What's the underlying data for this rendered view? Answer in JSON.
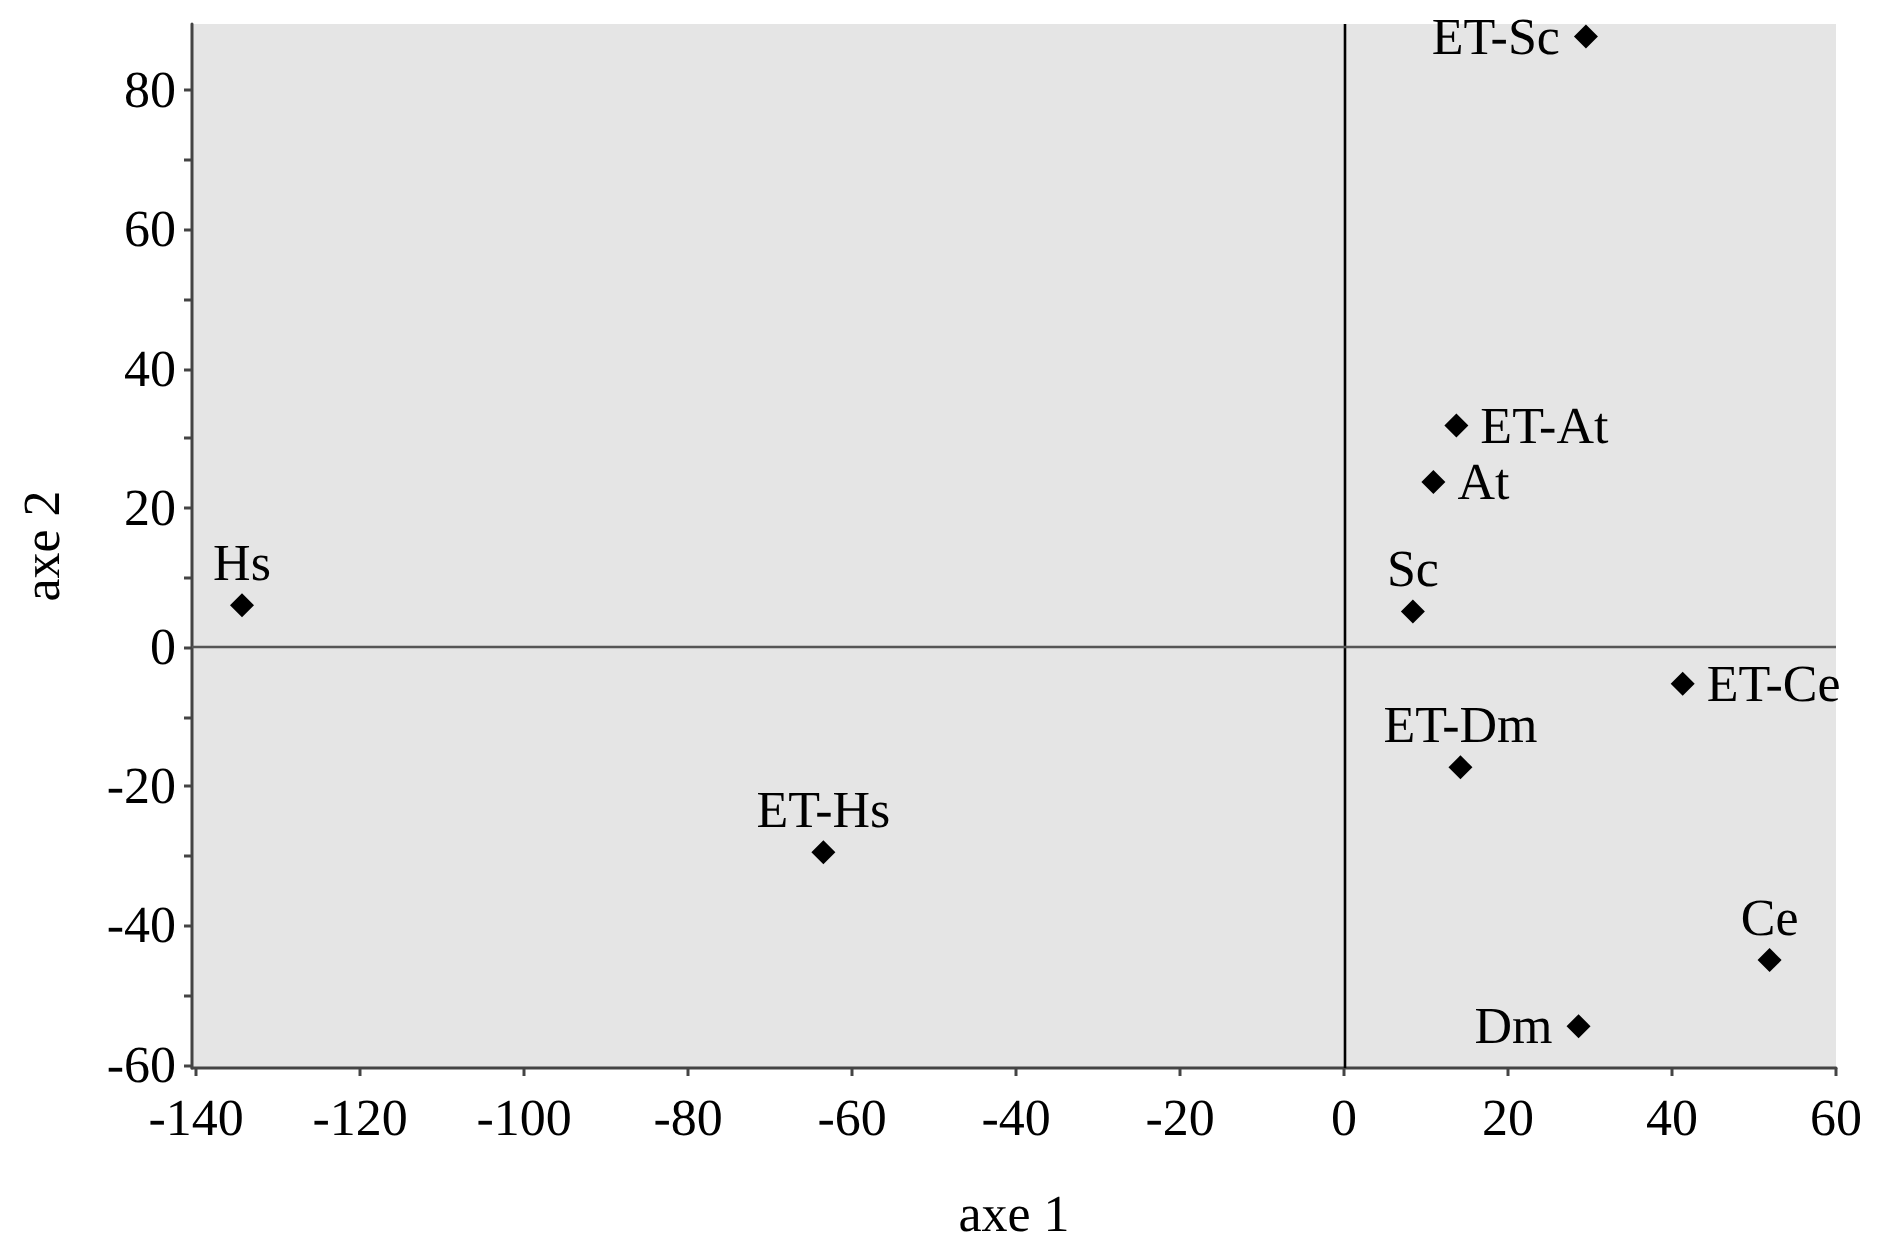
{
  "chart_data": {
    "type": "scatter",
    "xlabel": "axe 1",
    "ylabel": "axe 2",
    "x": [
      -134.4,
      -63.5,
      29.5,
      13.7,
      10.9,
      8.4,
      41.3,
      14.2,
      51.9,
      28.6
    ],
    "series": [
      {
        "color": "#000000",
        "values": [
          6.0,
          -29.5,
          87.7,
          31.8,
          23.7,
          5.1,
          -5.3,
          -17.3,
          -45.0,
          -54.5
        ]
      }
    ],
    "marker": "diamond",
    "grid": false,
    "xlim": [
      -140.5,
      60
    ],
    "xticks": [
      -140,
      -120,
      -100,
      -80,
      -60,
      -40,
      -20,
      0,
      20,
      40,
      60
    ],
    "ylim": [
      -60.5,
      89.5
    ],
    "yticks": [
      -60,
      {
        "value": -50,
        "label": null
      },
      -40,
      {
        "value": -30,
        "label": null
      },
      -20,
      {
        "value": -10,
        "label": null
      },
      0,
      {
        "value": 10,
        "label": null
      },
      20,
      {
        "value": 30,
        "label": null
      },
      40,
      {
        "value": 50,
        "label": null
      },
      60,
      {
        "value": 70,
        "label": null
      },
      80
    ],
    "ref_lines": [
      {
        "axis": "x",
        "value": 0,
        "color": "#000000"
      },
      {
        "axis": "y",
        "value": 0,
        "color": "#555555"
      }
    ],
    "annotations": [
      {
        "text": "Hs",
        "x": -134.4,
        "y": 6.0
      },
      {
        "text": "ET-Hs",
        "x": -63.5,
        "y": -29.5
      },
      {
        "text": "ET-Sc",
        "x": 29.5,
        "y": 87.7
      },
      {
        "text": "ET-At",
        "x": 13.7,
        "y": 31.8
      },
      {
        "text": "At",
        "x": 10.9,
        "y": 23.7
      },
      {
        "text": "Sc",
        "x": 8.4,
        "y": 5.1
      },
      {
        "text": "ET-Ce",
        "x": 41.3,
        "y": -5.3
      },
      {
        "text": "ET-Dm",
        "x": 14.2,
        "y": -17.3
      },
      {
        "text": "Ce",
        "x": 51.9,
        "y": -45.0
      },
      {
        "text": "Dm",
        "x": 28.6,
        "y": -54.5
      }
    ]
  }
}
